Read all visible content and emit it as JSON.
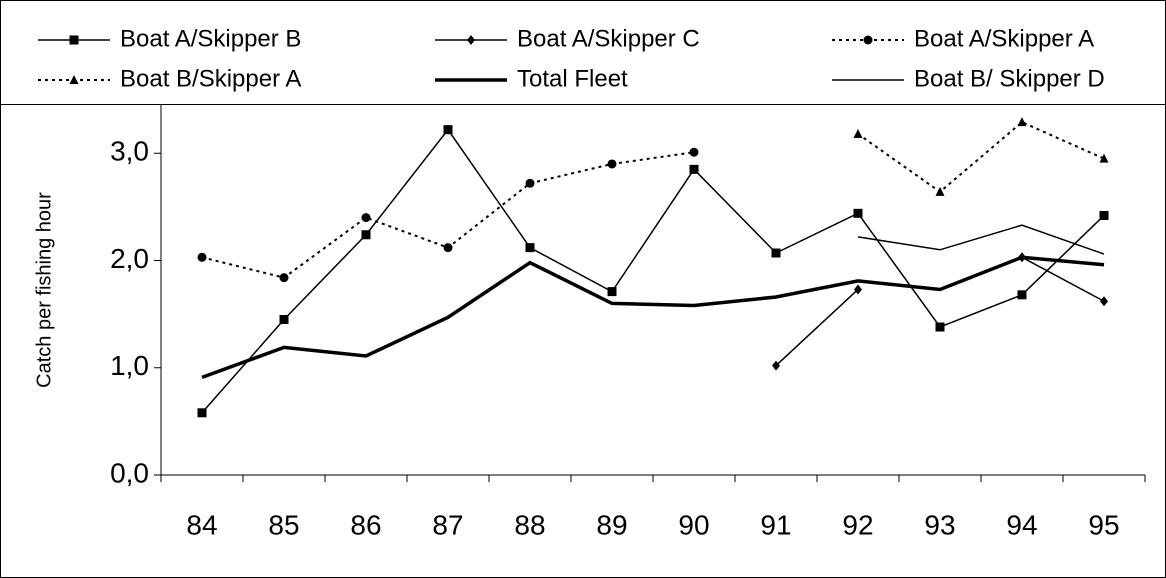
{
  "chart_data": {
    "type": "line",
    "y_label": "Catch per fishing hour",
    "categories": [
      "84",
      "85",
      "86",
      "87",
      "88",
      "89",
      "90",
      "91",
      "92",
      "93",
      "94",
      "95"
    ],
    "ylim": [
      0,
      3.45
    ],
    "yticks": [
      {
        "value": 0,
        "label": "0,0"
      },
      {
        "value": 1,
        "label": "1,0"
      },
      {
        "value": 2,
        "label": "2,0"
      },
      {
        "value": 3,
        "label": "3,0"
      }
    ],
    "legend": "top",
    "series": [
      {
        "name": "Boat A/Skipper B",
        "color": "#000000",
        "marker": "square",
        "dash": false,
        "width": 1.5,
        "values": [
          0.58,
          1.45,
          2.24,
          3.22,
          2.12,
          1.71,
          2.85,
          2.07,
          2.44,
          1.38,
          1.68,
          2.42
        ]
      },
      {
        "name": "Boat A/Skipper C",
        "color": "#000000",
        "marker": "diamond",
        "dash": false,
        "width": 1.5,
        "values": [
          null,
          null,
          null,
          null,
          null,
          null,
          null,
          1.02,
          1.73,
          null,
          2.03,
          1.62
        ]
      },
      {
        "name": "Boat A/Skipper A",
        "color": "#000000",
        "marker": "circle",
        "dash": true,
        "width": 2,
        "values": [
          2.03,
          1.84,
          2.4,
          2.12,
          2.72,
          2.9,
          3.01,
          null,
          null,
          null,
          null,
          null
        ]
      },
      {
        "name": "Boat B/Skipper A",
        "color": "#000000",
        "marker": "triangle",
        "dash": true,
        "width": 2,
        "values": [
          null,
          null,
          null,
          null,
          null,
          null,
          null,
          null,
          3.18,
          2.64,
          3.29,
          2.95
        ]
      },
      {
        "name": "Total Fleet",
        "color": "#000000",
        "marker": null,
        "dash": false,
        "width": 3.5,
        "values": [
          0.91,
          1.19,
          1.11,
          1.47,
          1.98,
          1.6,
          1.58,
          1.66,
          1.81,
          1.73,
          2.03,
          1.96
        ]
      },
      {
        "name": "Boat B/ Skipper D",
        "color": "#000000",
        "marker": null,
        "dash": false,
        "width": 1.5,
        "values": [
          null,
          null,
          null,
          null,
          null,
          null,
          null,
          null,
          2.22,
          2.1,
          2.33,
          2.06
        ]
      }
    ]
  }
}
